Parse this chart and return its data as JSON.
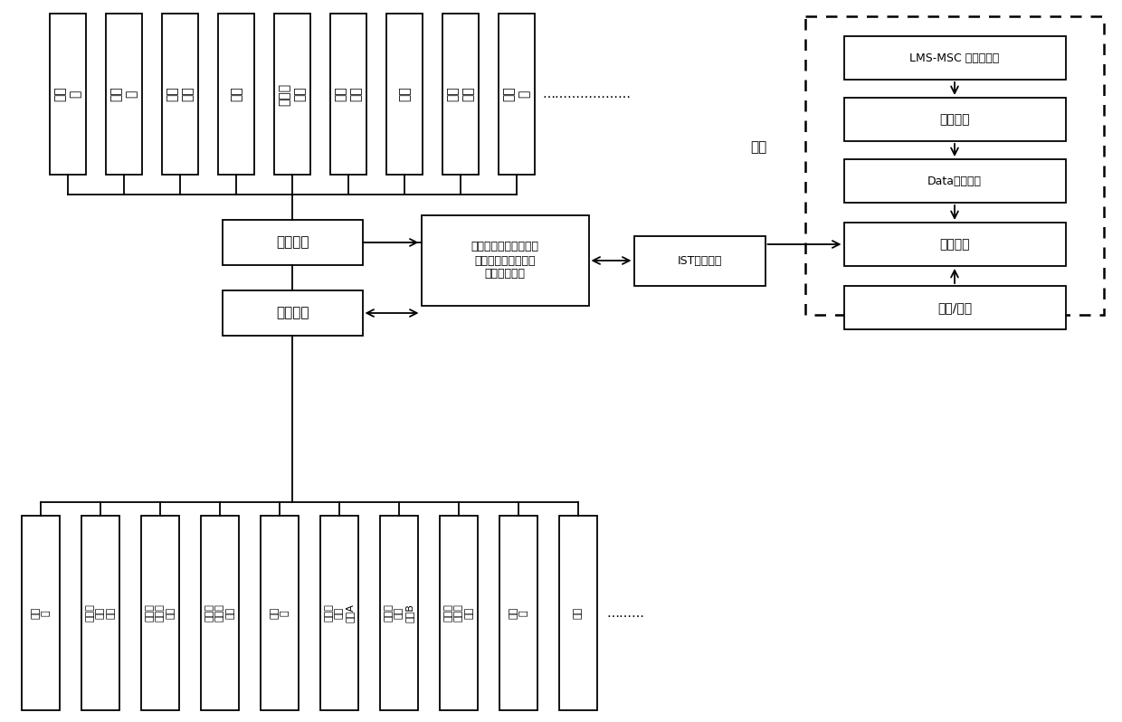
{
  "top_items": [
    "副车\n架",
    "减震\n器",
    "制动\n鼓总",
    "轮胎",
    "转向器\n及方",
    "向盘\n总成",
    "摆臂",
    "横向\n稳定",
    "连接\n杆"
  ],
  "bottom_items": [
    "铁地\n板",
    "减震器\n固定\n部件",
    "前副车\n架固定\n部件",
    "后副车\n架固定\n部件",
    "试验\n台",
    "转向器\n固定\n部件A",
    "转向器\n固定\n部件B",
    "转向管\n柱夹紧\n部件",
    "龙门\n架",
    "座椅"
  ],
  "mid_box1": "试验样件",
  "mid_box2": "实验台架",
  "act_box": "作动器组件（作动器、\n托载部件、作动器安\n装架、皮带）",
  "ist_box": "IST控制系统",
  "r_label": "实测",
  "r_box1": "LMS-MSC 六分力设备",
  "r_box2": "道路试验",
  "r_box3": "Data（路谱）",
  "r_box4": "电脑控制",
  "r_box5": "随机/迭代",
  "top_dots": "…………………",
  "bot_dots": "………",
  "bg": "#ffffff"
}
